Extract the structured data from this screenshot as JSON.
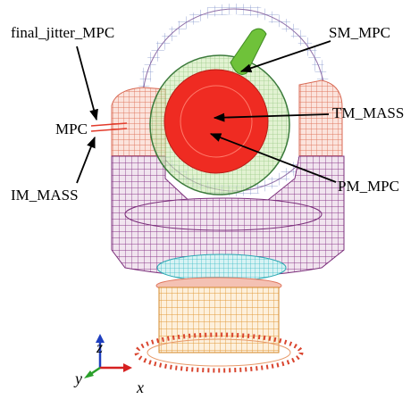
{
  "labels": [
    "final_jitter_MPC",
    "MPC",
    "IM_MASS",
    "SM_MPC",
    "TM_MASS",
    "PM_MPC"
  ],
  "axes": [
    "z",
    "y",
    "x"
  ]
}
